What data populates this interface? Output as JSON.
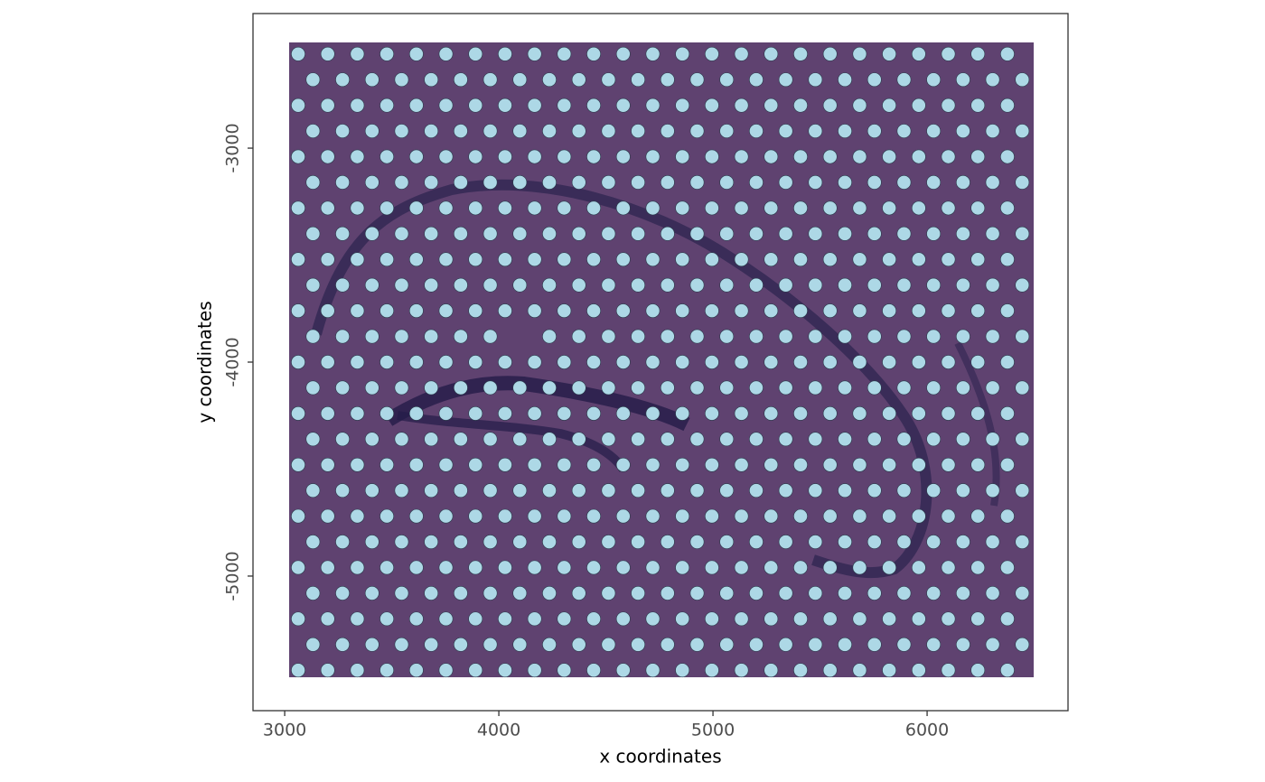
{
  "chart_data": {
    "type": "scatter",
    "xlabel": "x coordinates",
    "ylabel": "y coordinates",
    "color": "#add8e6",
    "grid": false,
    "xlim": [
      2852,
      6658
    ],
    "ylim": [
      -5629,
      -2371
    ],
    "xticks": [
      3000,
      4000,
      5000,
      6000
    ],
    "yticks": [
      -5000,
      -4000,
      -3000
    ],
    "x": [
      3063,
      3201,
      3339,
      3477,
      3615,
      3753,
      3891,
      4029,
      4167,
      4305,
      4443,
      4581,
      4719,
      4857,
      4995,
      5133,
      5271,
      5409,
      5547,
      5685,
      5823,
      5961,
      6099,
      6237,
      6375,
      3132,
      3270,
      3408,
      3546,
      3684,
      3822,
      3960,
      4098,
      4236,
      4374,
      4512,
      4650,
      4788,
      4926,
      5064,
      5202,
      5340,
      5478,
      5616,
      5754,
      5892,
      6030,
      6168,
      6306,
      6444,
      3063,
      3201,
      3339,
      3477,
      3615,
      3753,
      3891,
      4029,
      4167,
      4305,
      4443,
      4581,
      4719,
      4857,
      4995,
      5133,
      5271,
      5409,
      5547,
      5685,
      5823,
      5961,
      6099,
      6237,
      6375,
      3132,
      3270,
      3408,
      3546,
      3684,
      3822,
      3960,
      4098,
      4236,
      4374,
      4512,
      4650,
      4788,
      4926,
      5064,
      5202,
      5340,
      5478,
      5616,
      5754,
      5892,
      6030,
      6168,
      6306,
      6444,
      3063,
      3201,
      3339,
      3477,
      3615,
      3753,
      3891,
      4029,
      4167,
      4305,
      4443,
      4581,
      4719,
      4857,
      4995,
      5133,
      5271,
      5409,
      5547,
      5685,
      5823,
      5961,
      6099,
      6237,
      6375,
      3132,
      3270,
      3408,
      3546,
      3684,
      3822,
      3960,
      4098,
      4236,
      4374,
      4512,
      4650,
      4788,
      4926,
      5064,
      5202,
      5340,
      5478,
      5616,
      5754,
      5892,
      6030,
      6168,
      6306,
      6444,
      3063,
      3201,
      3339,
      3477,
      3615,
      3753,
      3891,
      4029,
      4167,
      4305,
      4443,
      4581,
      4719,
      4857,
      4995,
      5133,
      5271,
      5409,
      5547,
      5685,
      5823,
      5961,
      6099,
      6237,
      6375,
      3132,
      3270,
      3408,
      3546,
      3684,
      3822,
      3960,
      4098,
      4236,
      4374,
      4512,
      4650,
      4788,
      4926,
      5064,
      5202,
      5340,
      5478,
      5616,
      5754,
      5892,
      6030,
      6168,
      6306,
      6444,
      3063,
      3201,
      3339,
      3477,
      3615,
      3753,
      3891,
      4029,
      4167,
      4305,
      4443,
      4581,
      4719,
      4857,
      4995,
      5133,
      5271,
      5409,
      5547,
      5685,
      5823,
      5961,
      6099,
      6237,
      6375,
      3132,
      3270,
      3408,
      3546,
      3684,
      3822,
      3960,
      4098,
      4236,
      4374,
      4512,
      4650,
      4788,
      4926,
      5064,
      5202,
      5340,
      5478,
      5616,
      5754,
      5892,
      6030,
      6168,
      6306,
      6444,
      3063,
      3201,
      3339,
      3477,
      3615,
      3753,
      3891,
      4029,
      4167,
      4305,
      4443,
      4581,
      4719,
      4857,
      4995,
      5133,
      5271,
      5409,
      5547,
      5685,
      5823,
      5961,
      6099,
      6237,
      6375,
      3132,
      3270,
      3408,
      3546,
      3684,
      3822,
      3960,
      4236,
      4374,
      4512,
      4650,
      4788,
      4926,
      5064,
      5202,
      5340,
      5478,
      5616,
      5754,
      5892,
      6030,
      6168,
      6306,
      6444,
      3063,
      3201,
      3339,
      3477,
      3615,
      3753,
      3891,
      4029,
      4167,
      4305,
      4443,
      4581,
      4719,
      4857,
      4995,
      5133,
      5271,
      5409,
      5547,
      5685,
      5823,
      5961,
      6099,
      6237,
      6375,
      3132,
      3270,
      3408,
      3546,
      3684,
      3822,
      3960,
      4098,
      4236,
      4374,
      4512,
      4650,
      4788,
      4926,
      5064,
      5202,
      5340,
      5478,
      5616,
      5754,
      5892,
      6030,
      6168,
      6306,
      6444,
      3063,
      3201,
      3339,
      3477,
      3615,
      3753,
      3891,
      4029,
      4167,
      4305,
      4443,
      4581,
      4719,
      4857,
      4995,
      5133,
      5271,
      5409,
      5547,
      5685,
      5823,
      5961,
      6099,
      6237,
      6375,
      3132,
      3270,
      3408,
      3546,
      3684,
      3822,
      3960,
      4098,
      4236,
      4374,
      4512,
      4650,
      4788,
      4926,
      5064,
      5202,
      5340,
      5478,
      5616,
      5754,
      5892,
      6030,
      6168,
      6306,
      6444,
      3063,
      3201,
      3339,
      3477,
      3615,
      3753,
      3891,
      4029,
      4167,
      4305,
      4443,
      4581,
      4719,
      4857,
      4995,
      5133,
      5271,
      5409,
      5547,
      5685,
      5823,
      5961,
      6099,
      6237,
      6375,
      3132,
      3270,
      3408,
      3546,
      3684,
      3822,
      3960,
      4098,
      4236,
      4374,
      4512,
      4650,
      4788,
      4926,
      5064,
      5202,
      5340,
      5478,
      5616,
      5754,
      5892,
      6030,
      6168,
      6306,
      6444,
      3063,
      3201,
      3339,
      3477,
      3615,
      3753,
      3891,
      4029,
      4167,
      4305,
      4443,
      4581,
      4719,
      4857,
      4995,
      5133,
      5271,
      5409,
      5547,
      5685,
      5823,
      5961,
      6099,
      6237,
      6375,
      3132,
      3270,
      3408,
      3546,
      3684,
      3822,
      3960,
      4098,
      4236,
      4374,
      4512,
      4650,
      4788,
      4926,
      5064,
      5202,
      5340,
      5478,
      5616,
      5754,
      5892,
      6030,
      6168,
      6306,
      6444,
      3063,
      3201,
      3339,
      3477,
      3615,
      3753,
      3891,
      4029,
      4167,
      4305,
      4443,
      4581,
      4719,
      4857,
      4995,
      5133,
      5271,
      5409,
      5547,
      5685,
      5823,
      5961,
      6099,
      6237,
      6375,
      3132,
      3270,
      3408,
      3546,
      3684,
      3822,
      3960,
      4098,
      4236,
      4374,
      4512,
      4650,
      4788,
      4926,
      5064,
      5202,
      5340,
      5478,
      5616,
      5754,
      5892,
      6030,
      6168,
      6306,
      6444,
      3063,
      3201,
      3339,
      3477,
      3615,
      3753,
      3891,
      4029,
      4167,
      4305,
      4443,
      4581,
      4719,
      4857,
      4995,
      5133,
      5271,
      5409,
      5547,
      5685,
      5823,
      5961,
      6099,
      6237,
      6375,
      3132,
      3270,
      3408,
      3546,
      3684,
      3822,
      3960,
      4098,
      4236,
      4374,
      4512,
      4650,
      4788,
      4926,
      5064,
      5202,
      5340,
      5478,
      5616,
      5754,
      5892,
      6030,
      6168,
      6306,
      6444,
      3063,
      3201,
      3339,
      3477,
      3615,
      3753,
      3891,
      4029,
      4167,
      4305,
      4443,
      4581,
      4719,
      4857,
      4995,
      5133,
      5271,
      5409,
      5547,
      5685,
      5823,
      5961,
      6099,
      6237,
      6375
    ],
    "y": [
      -2560,
      -2560,
      -2560,
      -2560,
      -2560,
      -2560,
      -2560,
      -2560,
      -2560,
      -2560,
      -2560,
      -2560,
      -2560,
      -2560,
      -2560,
      -2560,
      -2560,
      -2560,
      -2560,
      -2560,
      -2560,
      -2560,
      -2560,
      -2560,
      -2560,
      -2680,
      -2680,
      -2680,
      -2680,
      -2680,
      -2680,
      -2680,
      -2680,
      -2680,
      -2680,
      -2680,
      -2680,
      -2680,
      -2680,
      -2680,
      -2680,
      -2680,
      -2680,
      -2680,
      -2680,
      -2680,
      -2680,
      -2680,
      -2680,
      -2680,
      -2800,
      -2800,
      -2800,
      -2800,
      -2800,
      -2800,
      -2800,
      -2800,
      -2800,
      -2800,
      -2800,
      -2800,
      -2800,
      -2800,
      -2800,
      -2800,
      -2800,
      -2800,
      -2800,
      -2800,
      -2800,
      -2800,
      -2800,
      -2800,
      -2800,
      -2920,
      -2920,
      -2920,
      -2920,
      -2920,
      -2920,
      -2920,
      -2920,
      -2920,
      -2920,
      -2920,
      -2920,
      -2920,
      -2920,
      -2920,
      -2920,
      -2920,
      -2920,
      -2920,
      -2920,
      -2920,
      -2920,
      -2920,
      -2920,
      -2920,
      -3040,
      -3040,
      -3040,
      -3040,
      -3040,
      -3040,
      -3040,
      -3040,
      -3040,
      -3040,
      -3040,
      -3040,
      -3040,
      -3040,
      -3040,
      -3040,
      -3040,
      -3040,
      -3040,
      -3040,
      -3040,
      -3040,
      -3040,
      -3040,
      -3040,
      -3160,
      -3160,
      -3160,
      -3160,
      -3160,
      -3160,
      -3160,
      -3160,
      -3160,
      -3160,
      -3160,
      -3160,
      -3160,
      -3160,
      -3160,
      -3160,
      -3160,
      -3160,
      -3160,
      -3160,
      -3160,
      -3160,
      -3160,
      -3160,
      -3160,
      -3280,
      -3280,
      -3280,
      -3280,
      -3280,
      -3280,
      -3280,
      -3280,
      -3280,
      -3280,
      -3280,
      -3280,
      -3280,
      -3280,
      -3280,
      -3280,
      -3280,
      -3280,
      -3280,
      -3280,
      -3280,
      -3280,
      -3280,
      -3280,
      -3280,
      -3400,
      -3400,
      -3400,
      -3400,
      -3400,
      -3400,
      -3400,
      -3400,
      -3400,
      -3400,
      -3400,
      -3400,
      -3400,
      -3400,
      -3400,
      -3400,
      -3400,
      -3400,
      -3400,
      -3400,
      -3400,
      -3400,
      -3400,
      -3400,
      -3400,
      -3520,
      -3520,
      -3520,
      -3520,
      -3520,
      -3520,
      -3520,
      -3520,
      -3520,
      -3520,
      -3520,
      -3520,
      -3520,
      -3520,
      -3520,
      -3520,
      -3520,
      -3520,
      -3520,
      -3520,
      -3520,
      -3520,
      -3520,
      -3520,
      -3520,
      -3640,
      -3640,
      -3640,
      -3640,
      -3640,
      -3640,
      -3640,
      -3640,
      -3640,
      -3640,
      -3640,
      -3640,
      -3640,
      -3640,
      -3640,
      -3640,
      -3640,
      -3640,
      -3640,
      -3640,
      -3640,
      -3640,
      -3640,
      -3640,
      -3640,
      -3760,
      -3760,
      -3760,
      -3760,
      -3760,
      -3760,
      -3760,
      -3760,
      -3760,
      -3760,
      -3760,
      -3760,
      -3760,
      -3760,
      -3760,
      -3760,
      -3760,
      -3760,
      -3760,
      -3760,
      -3760,
      -3760,
      -3760,
      -3760,
      -3760,
      -3880,
      -3880,
      -3880,
      -3880,
      -3880,
      -3880,
      -3880,
      -3880,
      -3880,
      -3880,
      -3880,
      -3880,
      -3880,
      -3880,
      -3880,
      -3880,
      -3880,
      -3880,
      -3880,
      -3880,
      -3880,
      -3880,
      -3880,
      -3880,
      -4000,
      -4000,
      -4000,
      -4000,
      -4000,
      -4000,
      -4000,
      -4000,
      -4000,
      -4000,
      -4000,
      -4000,
      -4000,
      -4000,
      -4000,
      -4000,
      -4000,
      -4000,
      -4000,
      -4000,
      -4000,
      -4000,
      -4000,
      -4000,
      -4000,
      -4120,
      -4120,
      -4120,
      -4120,
      -4120,
      -4120,
      -4120,
      -4120,
      -4120,
      -4120,
      -4120,
      -4120,
      -4120,
      -4120,
      -4120,
      -4120,
      -4120,
      -4120,
      -4120,
      -4120,
      -4120,
      -4120,
      -4120,
      -4120,
      -4120,
      -4240,
      -4240,
      -4240,
      -4240,
      -4240,
      -4240,
      -4240,
      -4240,
      -4240,
      -4240,
      -4240,
      -4240,
      -4240,
      -4240,
      -4240,
      -4240,
      -4240,
      -4240,
      -4240,
      -4240,
      -4240,
      -4240,
      -4240,
      -4240,
      -4240,
      -4360,
      -4360,
      -4360,
      -4360,
      -4360,
      -4360,
      -4360,
      -4360,
      -4360,
      -4360,
      -4360,
      -4360,
      -4360,
      -4360,
      -4360,
      -4360,
      -4360,
      -4360,
      -4360,
      -4360,
      -4360,
      -4360,
      -4360,
      -4360,
      -4360,
      -4480,
      -4480,
      -4480,
      -4480,
      -4480,
      -4480,
      -4480,
      -4480,
      -4480,
      -4480,
      -4480,
      -4480,
      -4480,
      -4480,
      -4480,
      -4480,
      -4480,
      -4480,
      -4480,
      -4480,
      -4480,
      -4480,
      -4480,
      -4480,
      -4480,
      -4600,
      -4600,
      -4600,
      -4600,
      -4600,
      -4600,
      -4600,
      -4600,
      -4600,
      -4600,
      -4600,
      -4600,
      -4600,
      -4600,
      -4600,
      -4600,
      -4600,
      -4600,
      -4600,
      -4600,
      -4600,
      -4600,
      -4600,
      -4600,
      -4600,
      -4720,
      -4720,
      -4720,
      -4720,
      -4720,
      -4720,
      -4720,
      -4720,
      -4720,
      -4720,
      -4720,
      -4720,
      -4720,
      -4720,
      -4720,
      -4720,
      -4720,
      -4720,
      -4720,
      -4720,
      -4720,
      -4720,
      -4720,
      -4720,
      -4720,
      -4840,
      -4840,
      -4840,
      -4840,
      -4840,
      -4840,
      -4840,
      -4840,
      -4840,
      -4840,
      -4840,
      -4840,
      -4840,
      -4840,
      -4840,
      -4840,
      -4840,
      -4840,
      -4840,
      -4840,
      -4840,
      -4840,
      -4840,
      -4840,
      -4840,
      -4960,
      -4960,
      -4960,
      -4960,
      -4960,
      -4960,
      -4960,
      -4960,
      -4960,
      -4960,
      -4960,
      -4960,
      -4960,
      -4960,
      -4960,
      -4960,
      -4960,
      -4960,
      -4960,
      -4960,
      -4960,
      -4960,
      -4960,
      -4960,
      -4960,
      -5080,
      -5080,
      -5080,
      -5080,
      -5080,
      -5080,
      -5080,
      -5080,
      -5080,
      -5080,
      -5080,
      -5080,
      -5080,
      -5080,
      -5080,
      -5080,
      -5080,
      -5080,
      -5080,
      -5080,
      -5080,
      -5080,
      -5080,
      -5080,
      -5080,
      -5200,
      -5200,
      -5200,
      -5200,
      -5200,
      -5200,
      -5200,
      -5200,
      -5200,
      -5200,
      -5200,
      -5200,
      -5200,
      -5200,
      -5200,
      -5200,
      -5200,
      -5200,
      -5200,
      -5200,
      -5200,
      -5200,
      -5200,
      -5200,
      -5200,
      -5320,
      -5320,
      -5320,
      -5320,
      -5320,
      -5320,
      -5320,
      -5320,
      -5320,
      -5320,
      -5320,
      -5320,
      -5320,
      -5320,
      -5320,
      -5320,
      -5320,
      -5320,
      -5320,
      -5320,
      -5320,
      -5320,
      -5320,
      -5320,
      -5320,
      -5440,
      -5440,
      -5440,
      -5440,
      -5440,
      -5440,
      -5440,
      -5440,
      -5440,
      -5440,
      -5440,
      -5440,
      -5440,
      -5440,
      -5440,
      -5440,
      -5440,
      -5440,
      -5440,
      -5440,
      -5440,
      -5440,
      -5440,
      -5440,
      -5440
    ]
  }
}
